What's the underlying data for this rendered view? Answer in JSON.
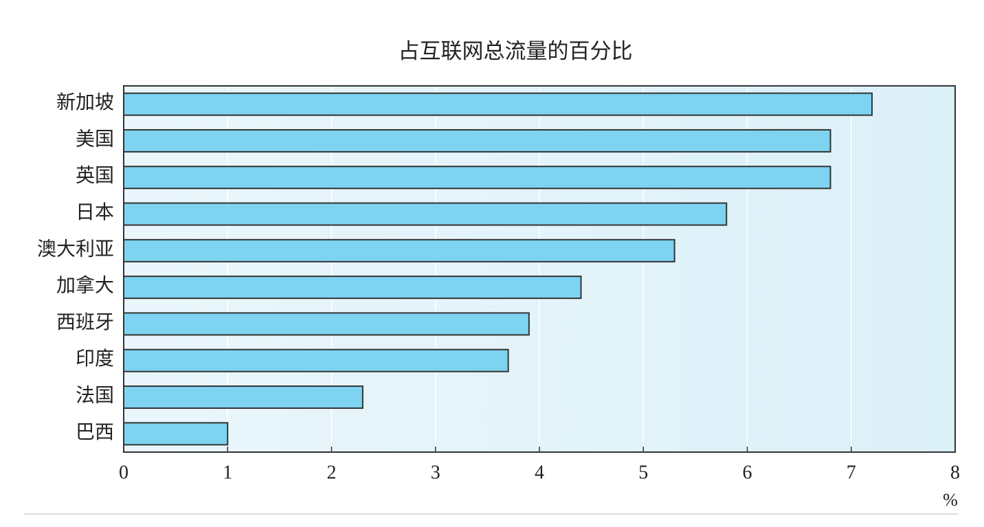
{
  "chart_data": {
    "type": "bar",
    "title": "占互联网总流量的百分比",
    "categories": [
      "新加坡",
      "美国",
      "英国",
      "日本",
      "澳大利亚",
      "加拿大",
      "西班牙",
      "印度",
      "法国",
      "巴西"
    ],
    "values": [
      7.2,
      6.8,
      6.8,
      5.8,
      5.3,
      4.4,
      3.9,
      3.7,
      2.3,
      1.0
    ],
    "color": "#7dd3f0",
    "xlabel": "%",
    "xlim": [
      0,
      8
    ],
    "xticks": [
      0,
      1,
      2,
      3,
      4,
      5,
      6,
      7,
      8
    ],
    "grid": true
  }
}
